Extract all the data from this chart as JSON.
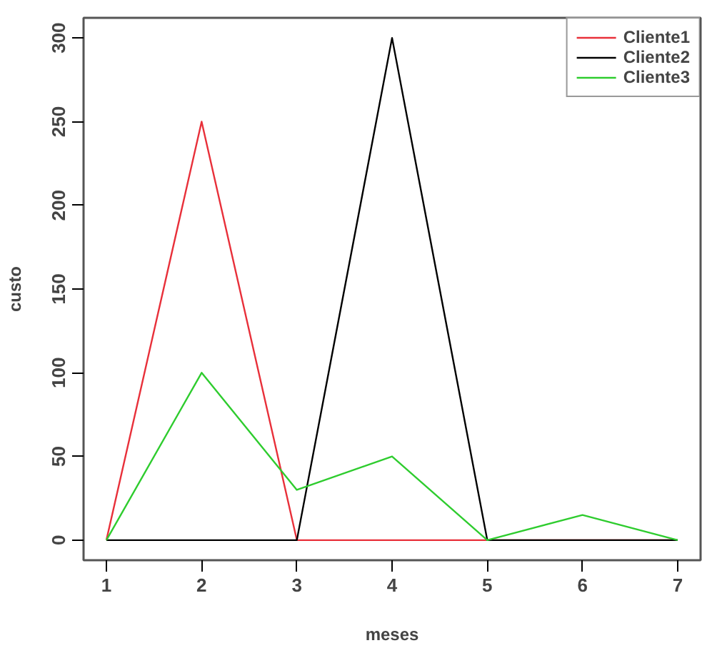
{
  "chart_data": {
    "type": "line",
    "xlabel": "meses",
    "ylabel": "custo",
    "x": [
      1,
      2,
      3,
      4,
      5,
      6,
      7
    ],
    "series": [
      {
        "name": "Cliente1",
        "color": "#e8303a",
        "values": [
          0,
          250,
          0,
          0,
          0,
          0,
          0
        ]
      },
      {
        "name": "Cliente2",
        "color": "#000000",
        "values": [
          0,
          0,
          0,
          300,
          0,
          0,
          0
        ]
      },
      {
        "name": "Cliente3",
        "color": "#2ecc2e",
        "values": [
          0,
          100,
          30,
          50,
          0,
          15,
          0
        ]
      }
    ],
    "xlim": [
      0.76,
      7.24
    ],
    "ylim": [
      -12,
      312
    ],
    "xticks": [
      1,
      2,
      3,
      4,
      5,
      6,
      7
    ],
    "yticks": [
      0,
      50,
      100,
      150,
      200,
      250,
      300
    ],
    "grid": false,
    "legend": "top right",
    "marker": "none",
    "line_style": "solid"
  }
}
